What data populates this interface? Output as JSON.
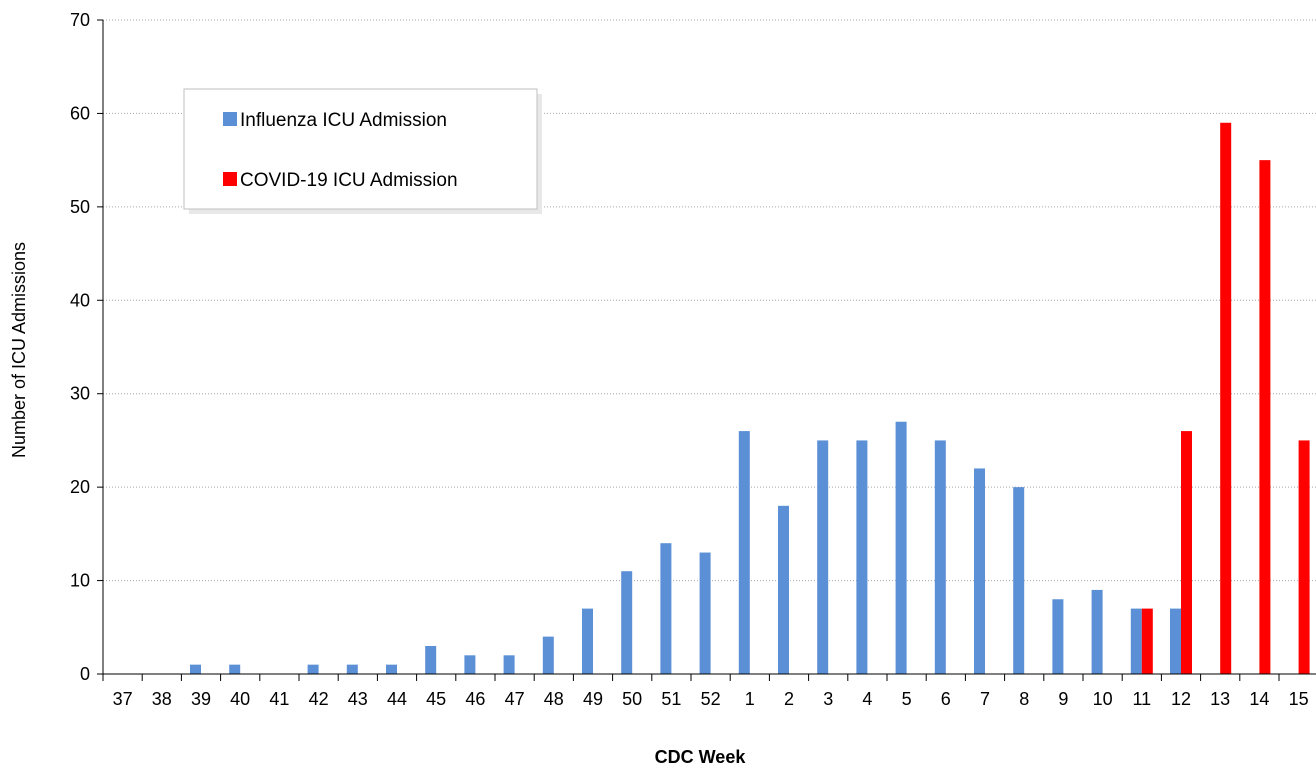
{
  "chart_data": {
    "type": "bar",
    "title": "",
    "xlabel": "CDC Week",
    "ylabel": "Number of ICU Admissions",
    "ylim": [
      0,
      70
    ],
    "yticks": [
      0,
      10,
      20,
      30,
      40,
      50,
      60,
      70
    ],
    "grid": true,
    "legend_position": "top-left",
    "categories": [
      "37",
      "38",
      "39",
      "40",
      "41",
      "42",
      "43",
      "44",
      "45",
      "46",
      "47",
      "48",
      "49",
      "50",
      "51",
      "52",
      "1",
      "2",
      "3",
      "4",
      "5",
      "6",
      "7",
      "8",
      "9",
      "10",
      "11",
      "12",
      "13",
      "14",
      "15"
    ],
    "series": [
      {
        "name": "Influenza ICU Admission",
        "color": "#5B8FD6",
        "values": [
          0,
          0,
          1,
          1,
          0,
          1,
          1,
          1,
          3,
          2,
          2,
          4,
          7,
          11,
          14,
          13,
          26,
          18,
          25,
          25,
          27,
          25,
          22,
          20,
          8,
          9,
          7,
          7,
          0,
          0,
          0
        ]
      },
      {
        "name": "COVID-19 ICU Admission",
        "color": "#FF0000",
        "values": [
          0,
          0,
          0,
          0,
          0,
          0,
          0,
          0,
          0,
          0,
          0,
          0,
          0,
          0,
          0,
          0,
          0,
          0,
          0,
          0,
          0,
          0,
          0,
          0,
          0,
          0,
          7,
          26,
          59,
          55,
          25
        ]
      }
    ]
  }
}
